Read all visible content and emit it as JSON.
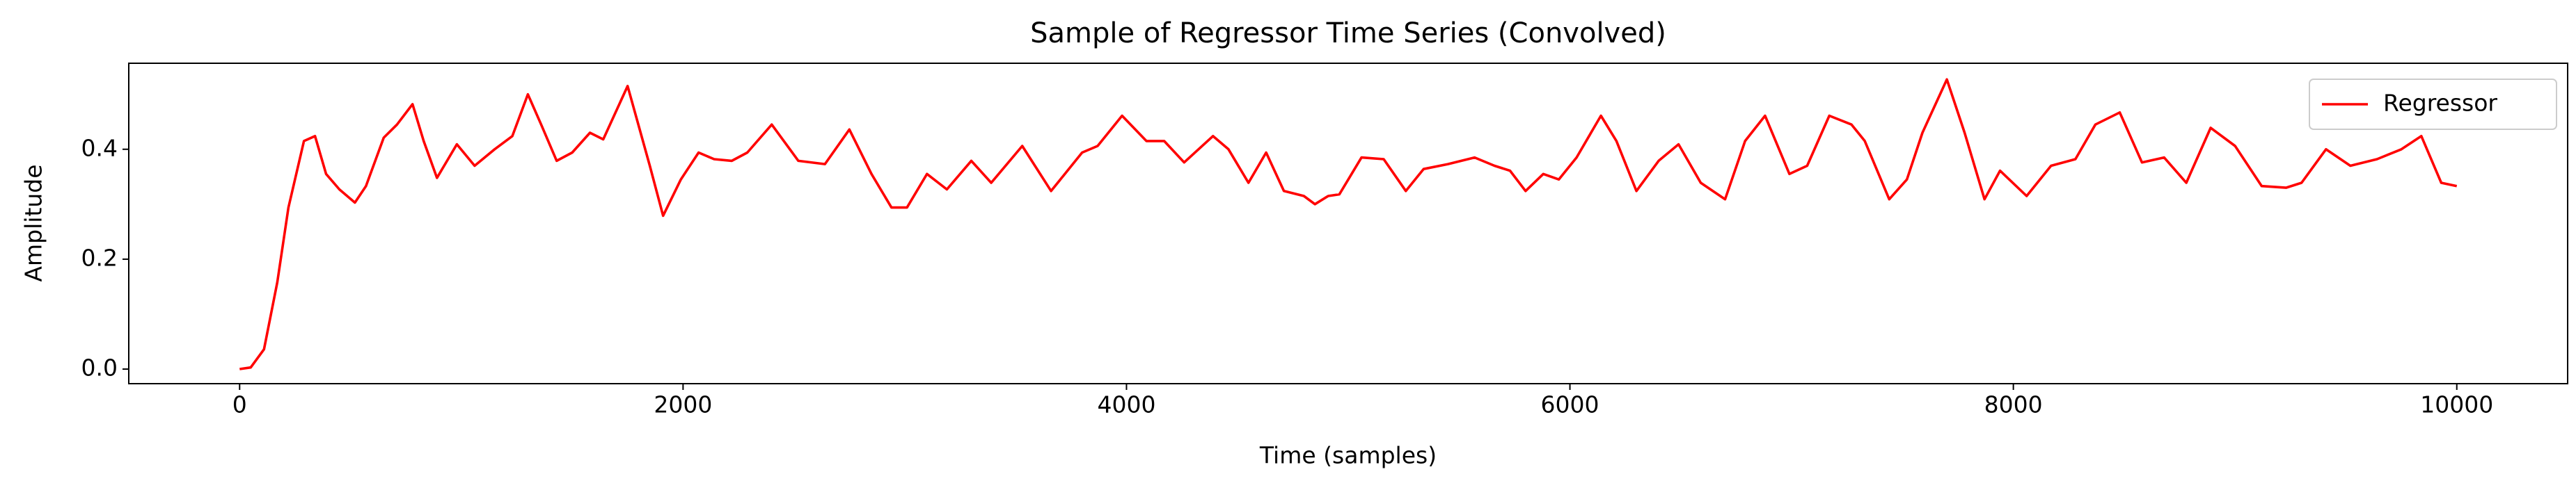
{
  "chart_data": {
    "type": "line",
    "title": "Sample of Regressor Time Series (Convolved)",
    "x_label": "Time (samples)",
    "y_label": "Amplitude",
    "xlim": [
      -500,
      10500
    ],
    "xticks": [
      0,
      2000,
      4000,
      6000,
      8000,
      10000
    ],
    "ylim": [
      -0.0265,
      0.5565
    ],
    "yticks": [
      {
        "value": 0,
        "label": "0.0"
      },
      0.2,
      0.4
    ],
    "grid": false,
    "legend": "upper right",
    "x": [
      0,
      50,
      110,
      170,
      220,
      290,
      340,
      390,
      450,
      520,
      570,
      650,
      710,
      780,
      830,
      890,
      980,
      1060,
      1150,
      1230,
      1300,
      1360,
      1430,
      1500,
      1580,
      1640,
      1750,
      1850,
      1910,
      1990,
      2070,
      2140,
      2220,
      2290,
      2400,
      2520,
      2640,
      2750,
      2850,
      2940,
      3010,
      3100,
      3190,
      3300,
      3390,
      3530,
      3660,
      3800,
      3870,
      3980,
      4090,
      4170,
      4260,
      4390,
      4460,
      4550,
      4630,
      4710,
      4800,
      4850,
      4910,
      4960,
      5060,
      5160,
      5260,
      5340,
      5450,
      5570,
      5660,
      5730,
      5800,
      5880,
      5950,
      6030,
      6140,
      6210,
      6300,
      6400,
      6490,
      6590,
      6700,
      6790,
      6880,
      6990,
      7070,
      7170,
      7270,
      7330,
      7440,
      7520,
      7590,
      7700,
      7780,
      7870,
      7940,
      8060,
      8170,
      8280,
      8370,
      8480,
      8580,
      8680,
      8780,
      8890,
      9000,
      9120,
      9230,
      9300,
      9410,
      9520,
      9640,
      9750,
      9840,
      9930,
      10000
    ],
    "series": [
      {
        "name": "Regressor",
        "color": "#ff0000",
        "values": [
          0,
          0.003,
          0.036,
          0.158,
          0.294,
          0.415,
          0.424,
          0.355,
          0.327,
          0.303,
          0.333,
          0.421,
          0.445,
          0.482,
          0.415,
          0.348,
          0.409,
          0.37,
          0.4,
          0.424,
          0.5,
          0.445,
          0.379,
          0.394,
          0.43,
          0.418,
          0.515,
          0.37,
          0.279,
          0.345,
          0.394,
          0.382,
          0.379,
          0.394,
          0.445,
          0.379,
          0.373,
          0.436,
          0.355,
          0.294,
          0.294,
          0.355,
          0.327,
          0.379,
          0.339,
          0.406,
          0.324,
          0.394,
          0.406,
          0.461,
          0.415,
          0.415,
          0.376,
          0.424,
          0.4,
          0.339,
          0.394,
          0.324,
          0.315,
          0.3,
          0.315,
          0.318,
          0.385,
          0.382,
          0.324,
          0.364,
          0.373,
          0.385,
          0.37,
          0.361,
          0.324,
          0.355,
          0.345,
          0.385,
          0.461,
          0.415,
          0.324,
          0.379,
          0.409,
          0.339,
          0.309,
          0.415,
          0.461,
          0.355,
          0.37,
          0.461,
          0.445,
          0.415,
          0.309,
          0.345,
          0.43,
          0.527,
          0.43,
          0.309,
          0.361,
          0.315,
          0.37,
          0.382,
          0.445,
          0.467,
          0.376,
          0.385,
          0.339,
          0.439,
          0.406,
          0.333,
          0.33,
          0.339,
          0.4,
          0.37,
          0.382,
          0.4,
          0.424,
          0.339,
          0.333
        ]
      }
    ]
  }
}
